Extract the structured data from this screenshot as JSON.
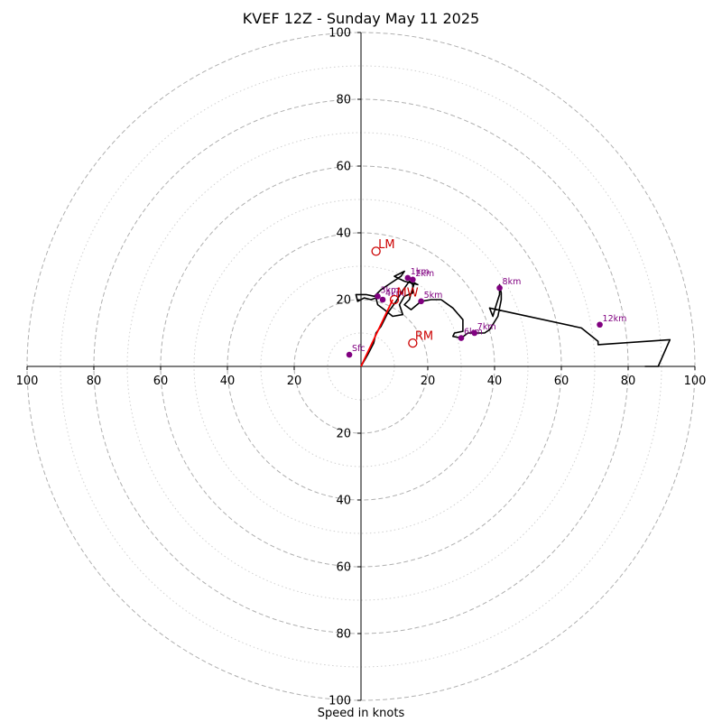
{
  "chart_data": {
    "type": "hodograph",
    "title": "KVEF 12Z - Sunday May 11 2025",
    "xlabel": "Speed in knots",
    "axis_range": [
      -100,
      100
    ],
    "ring_major": [
      20,
      40,
      60,
      80,
      100
    ],
    "ring_minor": [
      10,
      30,
      50,
      70,
      90
    ],
    "tick_labels": [
      "100",
      "80",
      "60",
      "40",
      "20",
      "20",
      "40",
      "60",
      "80",
      "100"
    ],
    "colors": {
      "trace": "#000000",
      "height_markers": "#800080",
      "motion_markers": "#cc0000",
      "mean_wind_vector": "#ff0000",
      "rings": "#b0b0b0"
    },
    "hodograph_trace": [
      [
        0,
        0
      ],
      [
        2,
        3.5
      ],
      [
        3.8,
        7
      ],
      [
        4.5,
        10
      ],
      [
        6,
        12
      ],
      [
        8,
        16
      ],
      [
        10.5,
        19.5
      ],
      [
        12,
        22
      ],
      [
        14.5,
        25.5
      ],
      [
        15.5,
        24.5
      ],
      [
        15.5,
        22
      ],
      [
        13,
        21
      ],
      [
        11.5,
        18.5
      ],
      [
        12.5,
        15.5
      ],
      [
        9.5,
        15
      ],
      [
        7,
        17
      ],
      [
        5,
        18.5
      ],
      [
        4.5,
        20.5
      ],
      [
        3,
        20
      ],
      [
        1,
        20.5
      ],
      [
        -1,
        19.5
      ],
      [
        -1.5,
        21.5
      ],
      [
        1.5,
        21.5
      ],
      [
        4,
        21
      ],
      [
        6,
        23
      ],
      [
        9,
        25
      ],
      [
        12,
        27
      ],
      [
        13,
        28.5
      ],
      [
        10,
        27
      ],
      [
        13,
        25.5
      ],
      [
        17,
        24.5
      ],
      [
        16,
        25
      ],
      [
        15,
        22
      ],
      [
        14.5,
        20
      ],
      [
        13,
        18.5
      ],
      [
        15,
        17
      ],
      [
        18,
        19.5
      ],
      [
        21,
        20
      ],
      [
        24,
        20
      ],
      [
        27.5,
        17.5
      ],
      [
        30.5,
        14
      ],
      [
        30.5,
        10.5
      ],
      [
        28,
        10
      ],
      [
        27.5,
        9
      ],
      [
        30,
        8.5
      ],
      [
        32,
        10
      ],
      [
        37,
        10
      ],
      [
        38.5,
        11
      ],
      [
        41,
        15
      ],
      [
        42,
        20
      ],
      [
        42,
        22
      ],
      [
        41.5,
        24.5
      ],
      [
        41.5,
        21.5
      ],
      [
        40.5,
        18.5
      ],
      [
        39.5,
        15
      ],
      [
        38.5,
        17.5
      ],
      [
        66,
        11.5
      ],
      [
        71,
        7.5
      ],
      [
        71,
        6.5
      ],
      [
        92.5,
        8
      ],
      [
        89,
        0
      ],
      [
        85,
        0
      ]
    ],
    "height_markers": [
      {
        "label": "Sfc",
        "x": -3.5,
        "y": 3.5
      },
      {
        "label": "1km",
        "x": 14,
        "y": 26.5
      },
      {
        "label": "2km",
        "x": 15.5,
        "y": 26
      },
      {
        "label": "3km",
        "x": 5,
        "y": 21
      },
      {
        "label": "4km",
        "x": 6.5,
        "y": 20
      },
      {
        "label": "5km",
        "x": 18,
        "y": 19.5
      },
      {
        "label": "6km",
        "x": 30,
        "y": 8.5
      },
      {
        "label": "7km",
        "x": 34,
        "y": 10
      },
      {
        "label": "8km",
        "x": 41.5,
        "y": 23.5
      },
      {
        "label": "12km",
        "x": 71.5,
        "y": 12.5
      }
    ],
    "motion_markers": [
      {
        "label": "LM",
        "x": 4.5,
        "y": 34.5
      },
      {
        "label": "MW",
        "x": 10,
        "y": 20
      },
      {
        "label": "RM",
        "x": 15.5,
        "y": 7
      }
    ],
    "mean_wind_vector": {
      "x": 9.5,
      "y": 20
    }
  }
}
